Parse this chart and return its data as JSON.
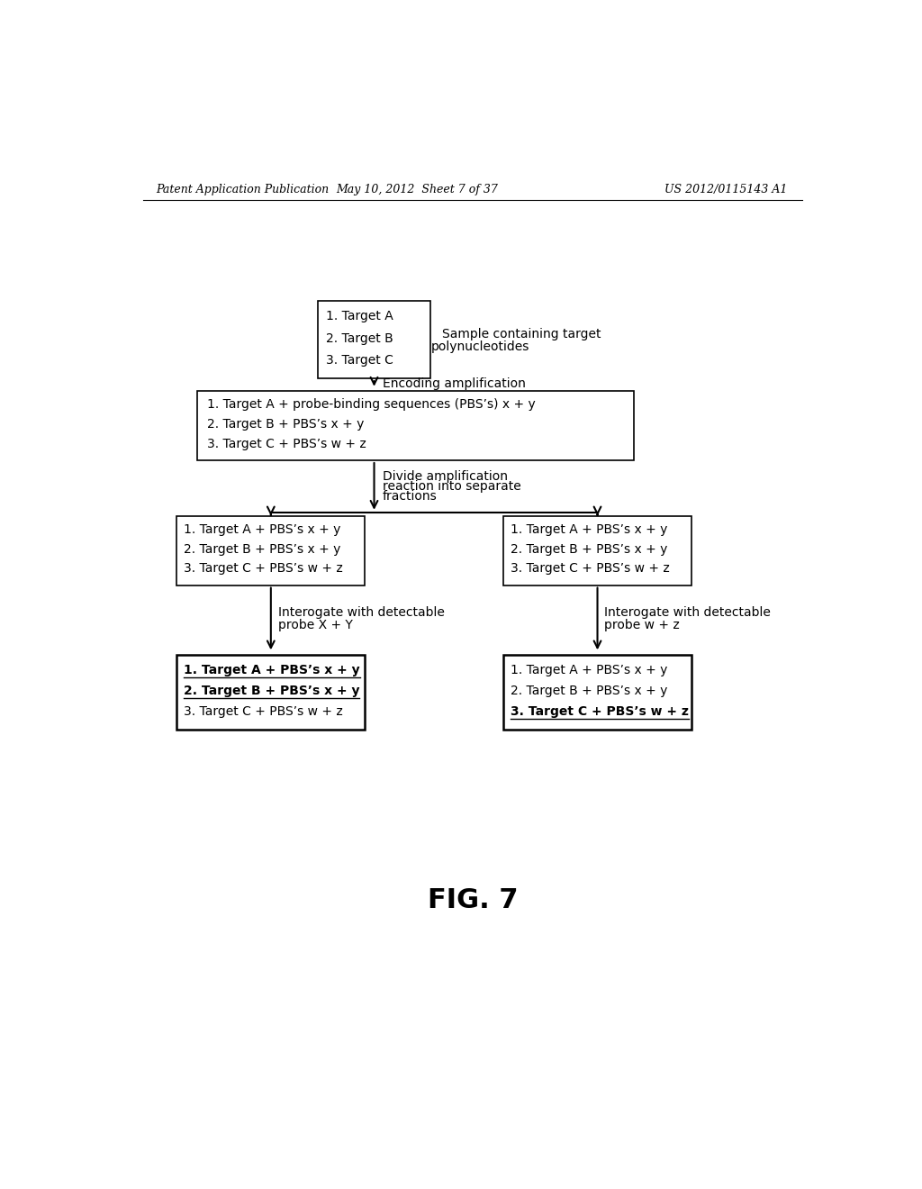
{
  "bg_color": "#ffffff",
  "header_left": "Patent Application Publication",
  "header_mid": "May 10, 2012  Sheet 7 of 37",
  "header_right": "US 2012/0115143 A1",
  "fig_label": "FIG. 7",
  "box1_lines": [
    "1. Target A",
    "2. Target B",
    "3. Target C"
  ],
  "box1_side_line1": "Sample containing target",
  "box1_side_line2": "polynucleotides",
  "arrow1_label": "Encoding amplification",
  "box2_lines": [
    "1. Target A + probe-binding sequences (PBS’s) x + y",
    "2. Target B + PBS’s x + y",
    "3. Target C + PBS’s w + z"
  ],
  "arrow2_line1": "Divide amplification",
  "arrow2_line2": "reaction into separate",
  "arrow2_line3": "fractions",
  "box3_lines": [
    "1. Target A + PBS’s x + y",
    "2. Target B + PBS’s x + y",
    "3. Target C + PBS’s w + z"
  ],
  "arrow3L_line1": "Interogate with detectable",
  "arrow3L_line2": "probe X + Y",
  "arrow3R_line1": "Interogate with detectable",
  "arrow3R_line2": "probe w + z",
  "box4L_lines": [
    "1. Target A + PBS’s x + y",
    "2. Target B + PBS’s x + y",
    "3. Target C + PBS’s w + z"
  ],
  "box4L_bold": [
    true,
    true,
    false
  ],
  "box4R_lines": [
    "1. Target A + PBS’s x + y",
    "2. Target B + PBS’s x + y",
    "3. Target C + PBS’s w + z"
  ],
  "box4R_bold": [
    false,
    false,
    true
  ],
  "font_size_header": 9,
  "font_size_body": 10,
  "font_size_fig": 22
}
